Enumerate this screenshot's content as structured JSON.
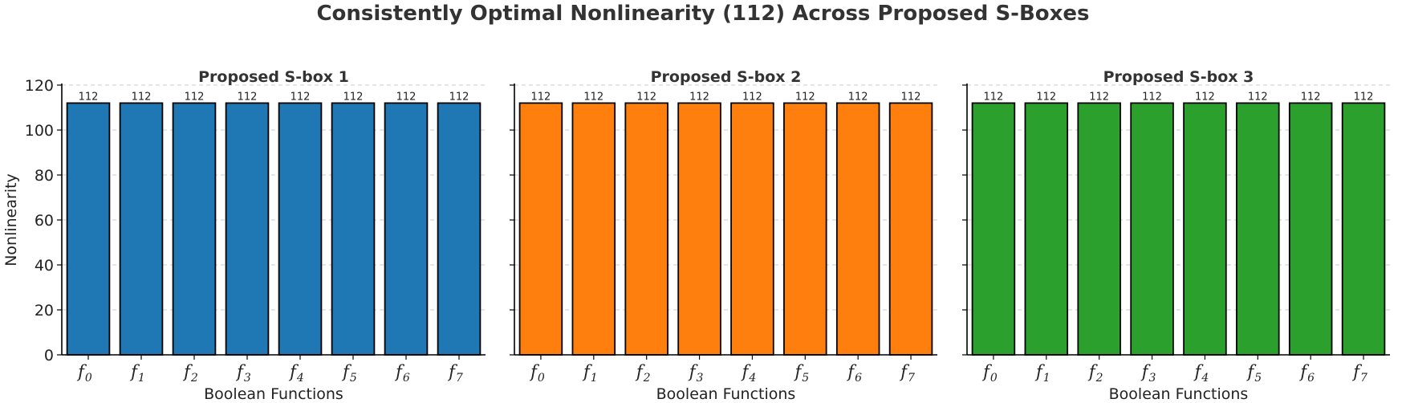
{
  "figure": {
    "title": "Consistently Optimal Nonlinearity (112) Across Proposed S-Boxes"
  },
  "chart_data": [
    {
      "type": "bar",
      "title": "Proposed S-box 1",
      "xlabel": "Boolean Functions",
      "ylabel": "Nonlinearity",
      "categories": [
        "f0",
        "f1",
        "f2",
        "f3",
        "f4",
        "f5",
        "f6",
        "f7"
      ],
      "values": [
        112,
        112,
        112,
        112,
        112,
        112,
        112,
        112
      ],
      "data_labels": [
        "112",
        "112",
        "112",
        "112",
        "112",
        "112",
        "112",
        "112"
      ],
      "ylim": [
        0,
        120
      ],
      "yticks": [
        0,
        20,
        40,
        60,
        80,
        100,
        120
      ],
      "color": "#1f77b4",
      "grid": "y-dashed"
    },
    {
      "type": "bar",
      "title": "Proposed S-box 2",
      "xlabel": "Boolean Functions",
      "ylabel": "",
      "categories": [
        "f0",
        "f1",
        "f2",
        "f3",
        "f4",
        "f5",
        "f6",
        "f7"
      ],
      "values": [
        112,
        112,
        112,
        112,
        112,
        112,
        112,
        112
      ],
      "data_labels": [
        "112",
        "112",
        "112",
        "112",
        "112",
        "112",
        "112",
        "112"
      ],
      "ylim": [
        0,
        120
      ],
      "yticks": [
        0,
        20,
        40,
        60,
        80,
        100,
        120
      ],
      "color": "#ff7f0e",
      "grid": "y-dashed"
    },
    {
      "type": "bar",
      "title": "Proposed S-box 3",
      "xlabel": "Boolean Functions",
      "ylabel": "",
      "categories": [
        "f0",
        "f1",
        "f2",
        "f3",
        "f4",
        "f5",
        "f6",
        "f7"
      ],
      "values": [
        112,
        112,
        112,
        112,
        112,
        112,
        112,
        112
      ],
      "data_labels": [
        "112",
        "112",
        "112",
        "112",
        "112",
        "112",
        "112",
        "112"
      ],
      "ylim": [
        0,
        120
      ],
      "yticks": [
        0,
        20,
        40,
        60,
        80,
        100,
        120
      ],
      "color": "#2ca02c",
      "grid": "y-dashed"
    }
  ]
}
